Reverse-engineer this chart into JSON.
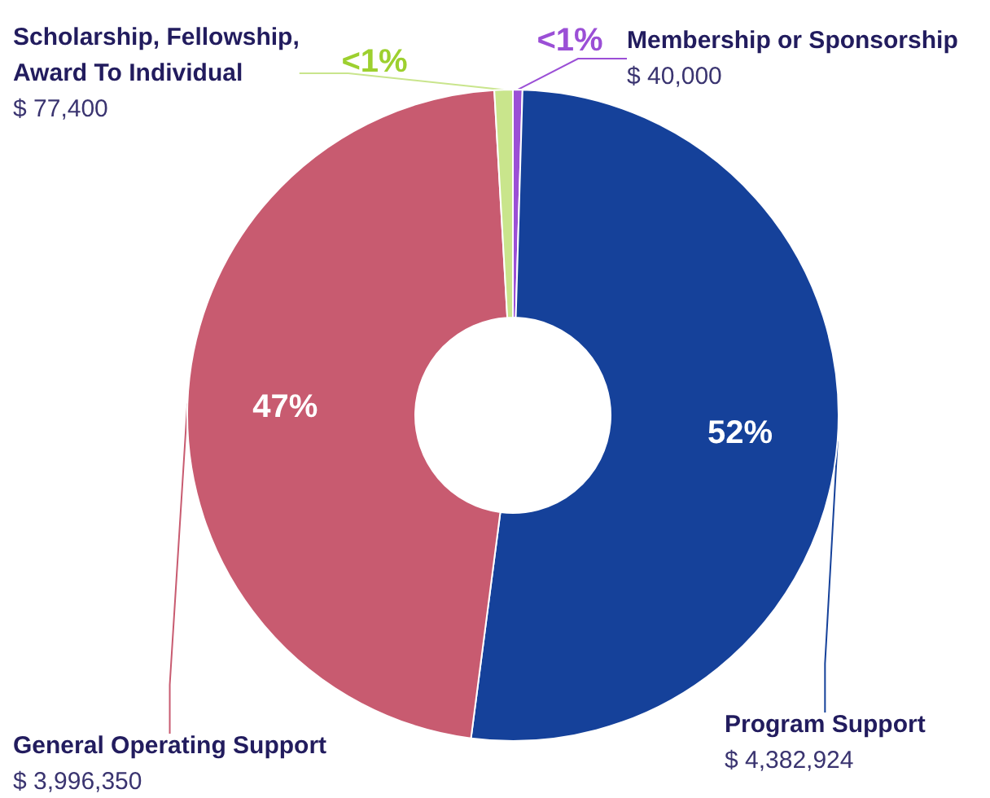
{
  "chart_data": {
    "type": "donut",
    "categories": [
      "Membership or Sponsorship",
      "Program Support",
      "General Operating Support",
      "Scholarship, Fellowship,\nAward To Individual"
    ],
    "values": [
      40000,
      4382924,
      3996350,
      77400
    ],
    "colors": [
      "#9b4fd6",
      "#15419a",
      "#c85b70",
      "#c9e58c"
    ],
    "value_labels": [
      "$ 40,000",
      "$ 4,382,924",
      "$ 3,996,350",
      "$ 77,400"
    ],
    "annotations": [
      "<1%",
      "52%",
      "47%",
      "<1%"
    ],
    "legend": false
  }
}
